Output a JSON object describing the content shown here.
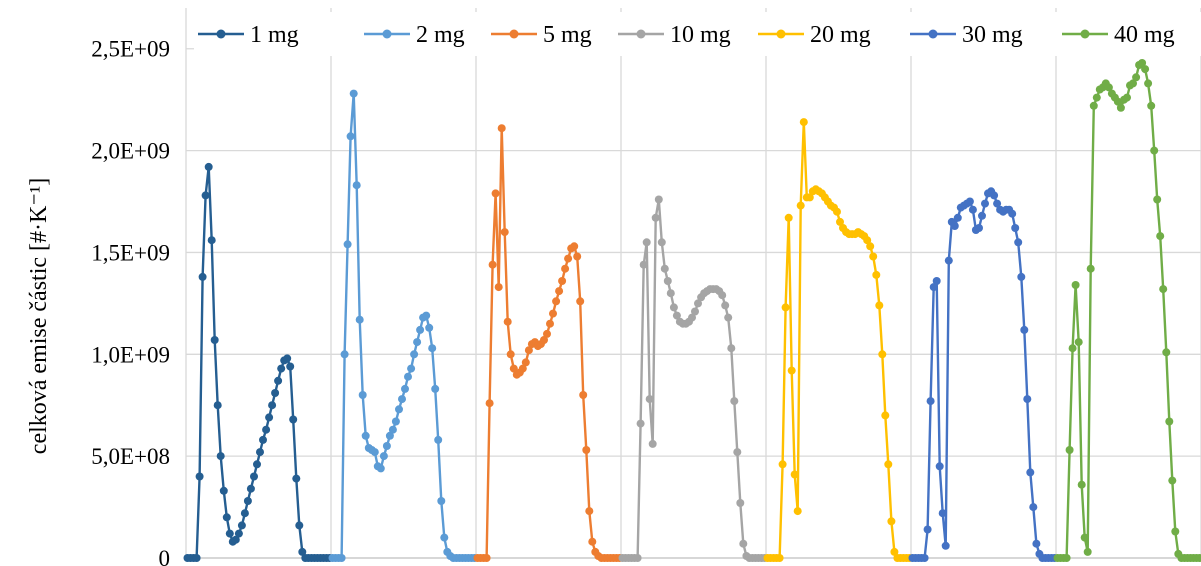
{
  "chart_data": {
    "type": "line",
    "title": "",
    "xlabel": "",
    "ylabel": "celková emise částic [#·K⁻¹]",
    "ylim": [
      0,
      2700000000
    ],
    "yticks": [
      {
        "value": 0,
        "label": "0"
      },
      {
        "value": 500000000,
        "label": "5,0E+08"
      },
      {
        "value": 1000000000,
        "label": "1,0E+09"
      },
      {
        "value": 1500000000,
        "label": "1,5E+09"
      },
      {
        "value": 2000000000,
        "label": "2,0E+09"
      },
      {
        "value": 2500000000,
        "label": "2,5E+09"
      }
    ],
    "x_sections": 7,
    "points_per_section": 48,
    "grid": true,
    "legend_position": "top",
    "series": [
      {
        "name": "1 mg",
        "color": "#255E91",
        "values": [
          0,
          0,
          0,
          0,
          0.4,
          1.38,
          1.78,
          1.92,
          1.56,
          1.07,
          0.75,
          0.5,
          0.33,
          0.2,
          0.12,
          0.08,
          0.09,
          0.12,
          0.16,
          0.22,
          0.28,
          0.34,
          0.4,
          0.46,
          0.52,
          0.58,
          0.63,
          0.69,
          0.75,
          0.81,
          0.87,
          0.93,
          0.97,
          0.98,
          0.94,
          0.68,
          0.39,
          0.16,
          0.03,
          0,
          0,
          0,
          0,
          0,
          0,
          0,
          0,
          0
        ]
      },
      {
        "name": "2 mg",
        "color": "#5B9BD5",
        "values": [
          0,
          0,
          0,
          0,
          1.0,
          1.54,
          2.07,
          2.28,
          1.83,
          1.17,
          0.8,
          0.6,
          0.54,
          0.53,
          0.52,
          0.45,
          0.44,
          0.5,
          0.55,
          0.6,
          0.63,
          0.67,
          0.73,
          0.78,
          0.83,
          0.89,
          0.93,
          1.0,
          1.06,
          1.12,
          1.18,
          1.19,
          1.13,
          1.03,
          0.83,
          0.58,
          0.28,
          0.1,
          0.03,
          0.01,
          0,
          0,
          0,
          0,
          0,
          0,
          0,
          0
        ]
      },
      {
        "name": "5 mg",
        "color": "#ED7D31",
        "values": [
          0,
          0,
          0,
          0,
          0.76,
          1.44,
          1.79,
          1.33,
          2.11,
          1.6,
          1.16,
          1.0,
          0.93,
          0.9,
          0.91,
          0.93,
          0.96,
          1.02,
          1.05,
          1.06,
          1.04,
          1.05,
          1.07,
          1.1,
          1.15,
          1.2,
          1.26,
          1.31,
          1.36,
          1.42,
          1.47,
          1.52,
          1.53,
          1.48,
          1.26,
          0.8,
          0.53,
          0.23,
          0.08,
          0.03,
          0.01,
          0,
          0,
          0,
          0,
          0,
          0,
          0
        ]
      },
      {
        "name": "10 mg",
        "color": "#A5A5A5",
        "values": [
          0,
          0,
          0,
          0,
          0,
          0,
          0.66,
          1.44,
          1.55,
          0.78,
          0.56,
          1.67,
          1.76,
          1.55,
          1.42,
          1.36,
          1.3,
          1.23,
          1.19,
          1.16,
          1.15,
          1.15,
          1.16,
          1.18,
          1.21,
          1.25,
          1.28,
          1.3,
          1.31,
          1.32,
          1.32,
          1.32,
          1.31,
          1.29,
          1.24,
          1.18,
          1.03,
          0.77,
          0.52,
          0.27,
          0.07,
          0.01,
          0,
          0,
          0,
          0,
          0,
          0
        ]
      },
      {
        "name": "20 mg",
        "color": "#FFC000",
        "values": [
          0,
          0,
          0,
          0,
          0,
          0.46,
          1.23,
          1.67,
          0.92,
          0.41,
          0.23,
          1.73,
          2.14,
          1.77,
          1.77,
          1.8,
          1.81,
          1.8,
          1.79,
          1.77,
          1.75,
          1.73,
          1.72,
          1.7,
          1.65,
          1.62,
          1.6,
          1.59,
          1.59,
          1.59,
          1.6,
          1.59,
          1.58,
          1.56,
          1.53,
          1.48,
          1.39,
          1.24,
          1.0,
          0.7,
          0.46,
          0.18,
          0.03,
          0,
          0,
          0,
          0,
          0
        ]
      },
      {
        "name": "30 mg",
        "color": "#4472C4",
        "values": [
          0,
          0,
          0,
          0,
          0,
          0.14,
          0.77,
          1.33,
          1.36,
          0.45,
          0.22,
          0.06,
          1.46,
          1.65,
          1.63,
          1.67,
          1.72,
          1.73,
          1.74,
          1.75,
          1.71,
          1.61,
          1.62,
          1.68,
          1.74,
          1.79,
          1.8,
          1.78,
          1.74,
          1.71,
          1.7,
          1.71,
          1.71,
          1.69,
          1.62,
          1.55,
          1.38,
          1.12,
          0.78,
          0.42,
          0.25,
          0.07,
          0.02,
          0,
          0,
          0,
          0,
          0
        ]
      },
      {
        "name": "40 mg",
        "color": "#70AD47",
        "values": [
          0,
          0,
          0,
          0,
          0.53,
          1.03,
          1.34,
          1.06,
          0.36,
          0.1,
          0.03,
          1.42,
          2.22,
          2.26,
          2.3,
          2.31,
          2.33,
          2.31,
          2.28,
          2.26,
          2.24,
          2.21,
          2.25,
          2.26,
          2.32,
          2.33,
          2.36,
          2.42,
          2.43,
          2.4,
          2.33,
          2.22,
          2.0,
          1.76,
          1.58,
          1.32,
          1.01,
          0.67,
          0.38,
          0.13,
          0.02,
          0,
          0,
          0,
          0,
          0,
          0,
          0
        ]
      }
    ]
  }
}
